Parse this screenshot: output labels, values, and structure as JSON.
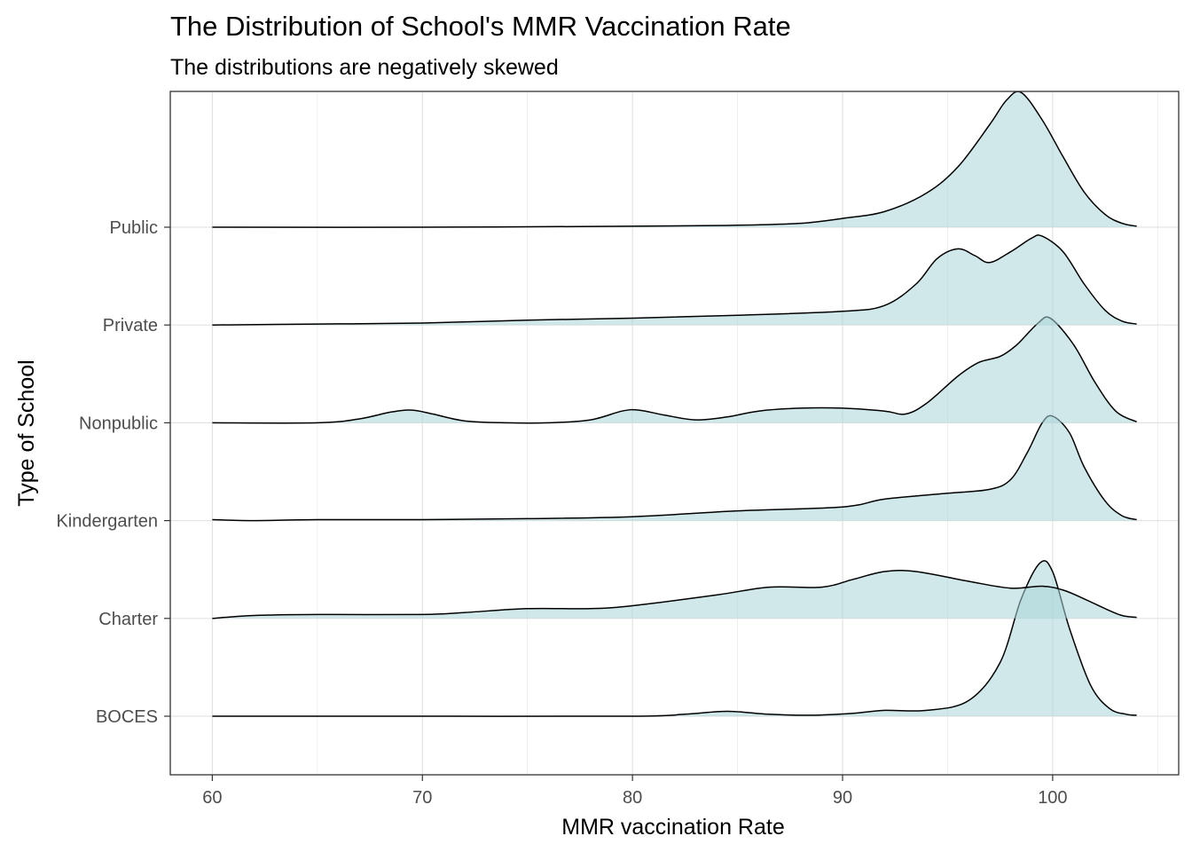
{
  "chart_data": {
    "type": "ridgeline",
    "title": "The Distribution of School's MMR Vaccination Rate",
    "subtitle": "The distributions are negatively skewed",
    "xlabel": "MMR vaccination Rate",
    "ylabel": "Type of School",
    "xlim": [
      58,
      106
    ],
    "x_ticks": [
      60,
      70,
      80,
      90,
      100
    ],
    "categories": [
      "BOCES",
      "Charter",
      "Kindergarten",
      "Nonpublic",
      "Private",
      "Public"
    ],
    "fill_color": "#a9d6d8",
    "fill_opacity": 0.55,
    "line_color": "#000000",
    "grid": true,
    "series": [
      {
        "name": "Public",
        "points": [
          [
            60,
            0
          ],
          [
            70,
            0
          ],
          [
            80,
            0.01
          ],
          [
            85,
            0.02
          ],
          [
            88,
            0.04
          ],
          [
            90,
            0.09
          ],
          [
            92,
            0.16
          ],
          [
            94,
            0.35
          ],
          [
            95.5,
            0.62
          ],
          [
            97,
            1.05
          ],
          [
            97.8,
            1.3
          ],
          [
            98.5,
            1.38
          ],
          [
            99.5,
            1.1
          ],
          [
            100.5,
            0.72
          ],
          [
            101.5,
            0.36
          ],
          [
            102.5,
            0.13
          ],
          [
            103.3,
            0.04
          ],
          [
            104,
            0.01
          ]
        ]
      },
      {
        "name": "Private",
        "points": [
          [
            60,
            0
          ],
          [
            65,
            0.01
          ],
          [
            70,
            0.02
          ],
          [
            75,
            0.05
          ],
          [
            80,
            0.07
          ],
          [
            85,
            0.1
          ],
          [
            90,
            0.14
          ],
          [
            92,
            0.2
          ],
          [
            93.5,
            0.42
          ],
          [
            94.5,
            0.68
          ],
          [
            95.5,
            0.78
          ],
          [
            96.3,
            0.71
          ],
          [
            97,
            0.64
          ],
          [
            98,
            0.75
          ],
          [
            99,
            0.89
          ],
          [
            99.5,
            0.91
          ],
          [
            100.5,
            0.75
          ],
          [
            101.5,
            0.42
          ],
          [
            102.5,
            0.15
          ],
          [
            103.3,
            0.04
          ],
          [
            104,
            0.01
          ]
        ]
      },
      {
        "name": "Nonpublic",
        "points": [
          [
            60,
            0
          ],
          [
            65,
            0
          ],
          [
            67,
            0.04
          ],
          [
            68.5,
            0.11
          ],
          [
            69.5,
            0.13
          ],
          [
            70.5,
            0.09
          ],
          [
            72,
            0.02
          ],
          [
            74,
            0
          ],
          [
            76,
            0
          ],
          [
            78,
            0.03
          ],
          [
            79.5,
            0.12
          ],
          [
            80.3,
            0.13
          ],
          [
            81.5,
            0.08
          ],
          [
            83,
            0.03
          ],
          [
            84.5,
            0.06
          ],
          [
            86,
            0.12
          ],
          [
            88,
            0.15
          ],
          [
            90,
            0.15
          ],
          [
            92,
            0.12
          ],
          [
            93,
            0.09
          ],
          [
            94,
            0.2
          ],
          [
            95.5,
            0.48
          ],
          [
            96.5,
            0.62
          ],
          [
            97.5,
            0.68
          ],
          [
            98.3,
            0.8
          ],
          [
            99.3,
            1.02
          ],
          [
            99.9,
            1.07
          ],
          [
            101,
            0.8
          ],
          [
            102,
            0.42
          ],
          [
            103,
            0.12
          ],
          [
            104,
            0.01
          ]
        ]
      },
      {
        "name": "Kindergarten",
        "points": [
          [
            60,
            0.01
          ],
          [
            62,
            0
          ],
          [
            65,
            0.01
          ],
          [
            70,
            0.01
          ],
          [
            75,
            0.02
          ],
          [
            80,
            0.04
          ],
          [
            85,
            0.1
          ],
          [
            90,
            0.14
          ],
          [
            92,
            0.22
          ],
          [
            95,
            0.28
          ],
          [
            97,
            0.32
          ],
          [
            98,
            0.42
          ],
          [
            98.8,
            0.7
          ],
          [
            99.5,
            1.0
          ],
          [
            100,
            1.07
          ],
          [
            100.8,
            0.9
          ],
          [
            101.5,
            0.55
          ],
          [
            102.5,
            0.2
          ],
          [
            103.3,
            0.05
          ],
          [
            104,
            0.01
          ]
        ]
      },
      {
        "name": "Charter",
        "points": [
          [
            60,
            0
          ],
          [
            62,
            0.03
          ],
          [
            65,
            0.04
          ],
          [
            70,
            0.04
          ],
          [
            72,
            0.06
          ],
          [
            75,
            0.1
          ],
          [
            78,
            0.1
          ],
          [
            80,
            0.13
          ],
          [
            84,
            0.24
          ],
          [
            86.5,
            0.32
          ],
          [
            89,
            0.32
          ],
          [
            90.5,
            0.4
          ],
          [
            92,
            0.48
          ],
          [
            93.5,
            0.48
          ],
          [
            96,
            0.38
          ],
          [
            98,
            0.31
          ],
          [
            99.5,
            0.33
          ],
          [
            100.5,
            0.29
          ],
          [
            101.5,
            0.2
          ],
          [
            102.5,
            0.1
          ],
          [
            103.3,
            0.03
          ],
          [
            104,
            0.01
          ]
        ]
      },
      {
        "name": "BOCES",
        "points": [
          [
            60,
            0
          ],
          [
            70,
            0
          ],
          [
            80,
            0
          ],
          [
            82.5,
            0.02
          ],
          [
            84.5,
            0.05
          ],
          [
            86.5,
            0.02
          ],
          [
            88.5,
            0.01
          ],
          [
            90.5,
            0.03
          ],
          [
            92,
            0.06
          ],
          [
            94,
            0.06
          ],
          [
            96,
            0.16
          ],
          [
            97.5,
            0.55
          ],
          [
            98.5,
            1.2
          ],
          [
            99.4,
            1.57
          ],
          [
            100,
            1.48
          ],
          [
            100.8,
            0.9
          ],
          [
            101.8,
            0.32
          ],
          [
            102.7,
            0.08
          ],
          [
            103.5,
            0.02
          ],
          [
            104,
            0.01
          ]
        ]
      }
    ]
  }
}
